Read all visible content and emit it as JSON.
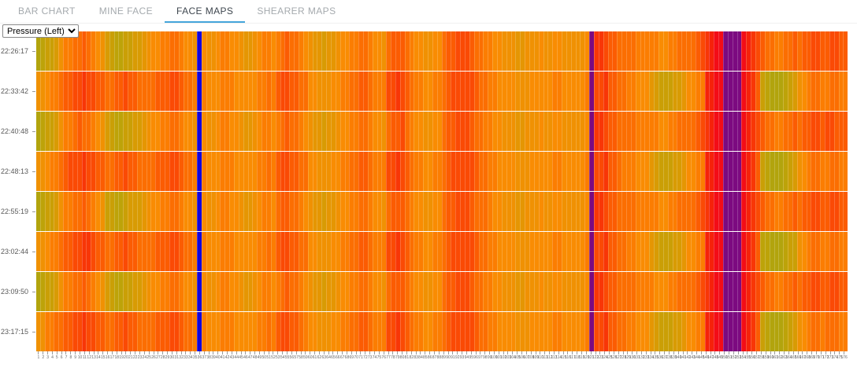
{
  "tabs": [
    {
      "label": "BAR CHART",
      "active": false
    },
    {
      "label": "MINE FACE",
      "active": false
    },
    {
      "label": "FACE MAPS",
      "active": true
    },
    {
      "label": "SHEARER MAPS",
      "active": false
    }
  ],
  "controls": {
    "metric_selected": "Pressure (Left)"
  },
  "colors": {
    "tab_active_underline": "#45a5db",
    "tab_active_text": "#3e464e",
    "tab_inactive_text": "#a5aaae",
    "axis_text": "#5a5a5a",
    "x_axis_text": "#666666",
    "tick": "#9a9a9a"
  },
  "chart_data": {
    "type": "heatmap",
    "metric": "Pressure (Left)",
    "n_cols": 176,
    "x_axis": {
      "first": 1,
      "last": 176,
      "step": 1
    },
    "grid": "faint white separators between cells",
    "legend_position": "none",
    "palette_note": "each hex digit is one support's pressure level: 0=lowest (olive/yellow-green), 5-9=orange, 10-13=red, 14=extreme (purple), 15=max (blue)",
    "palette": [
      "#b2a40d",
      "#bda309",
      "#ca9f06",
      "#d89b04",
      "#e59603",
      "#f09103",
      "#f98c03",
      "#fb7d02",
      "#fb6e02",
      "#fb5c03",
      "#fa4a05",
      "#f83607",
      "#f5220a",
      "#f30d17",
      "#7c0a80",
      "#1203dc"
    ],
    "notable_features": {
      "blue_column_support": 36,
      "purple_column_support": 121,
      "purple_band_supports": [
        150,
        153
      ],
      "red_band_supports": [
        146,
        156
      ]
    },
    "rows": [
      {
        "time": "22:26:17",
        "values": [
          "01",
          "2235",
          "778",
          "898",
          "765",
          "321122334",
          "5667",
          "7887",
          "665",
          "f",
          "6556",
          "7766",
          "5445",
          "6776",
          "7898876",
          "5443445",
          "6677887665",
          "89998",
          "7665566",
          "899aa",
          "a98877665",
          "55445556",
          "556655",
          "5556",
          "e",
          "bba9988",
          "88777",
          "77667788",
          "889a",
          "bcdd",
          "eeee",
          "dcb",
          "a",
          "98877889",
          "899aa",
          "99aa99"
        ]
      },
      {
        "time": "22:33:42",
        "values": [
          "55",
          "6778",
          "99a",
          "aba",
          "a99",
          "8899a9988",
          "8899",
          "9aa9",
          "887",
          "f",
          "7666",
          "7776",
          "6666",
          "7787",
          "9aa9988",
          "6655566",
          "7788998777",
          "aaba9",
          "8776677",
          "89aaa",
          "aa9887766",
          "66555666",
          "667766",
          "6667",
          "e",
          "aab9988",
          "77666",
          "43222334",
          "6677",
          "ccdd",
          "eeee",
          "dcb",
          "9",
          "21000123",
          "56788",
          "778877"
        ]
      },
      {
        "time": "22:40:48",
        "values": [
          "01",
          "2235",
          "778",
          "988",
          "765",
          "321122334",
          "5667",
          "7887",
          "665",
          "f",
          "6556",
          "7766",
          "5445",
          "6776",
          "7898876",
          "5443445",
          "6677887665",
          "899a8",
          "7665566",
          "899aa",
          "a98877665",
          "55445556",
          "556655",
          "5556",
          "e",
          "bba9988",
          "88777",
          "77667788",
          "889a",
          "bcdd",
          "eeee",
          "dcb",
          "a",
          "98877889",
          "899aa",
          "9aa999"
        ]
      },
      {
        "time": "22:48:13",
        "values": [
          "55",
          "6778",
          "9aa",
          "aba",
          "a99",
          "8899a9988",
          "8899",
          "9aa9",
          "887",
          "f",
          "7666",
          "7776",
          "6666",
          "7787",
          "9aa9988",
          "6655566",
          "7788998777",
          "aaba9",
          "8776677",
          "89aaa",
          "aa9887766",
          "66555666",
          "667766",
          "6667",
          "e",
          "aab9987",
          "77666",
          "43222334",
          "6677",
          "ccdd",
          "eeee",
          "dcb",
          "9",
          "21000123",
          "56788",
          "778877"
        ]
      },
      {
        "time": "22:55:19",
        "values": [
          "01",
          "2235",
          "778",
          "898",
          "765",
          "221123334",
          "5667",
          "7887",
          "665",
          "f",
          "6556",
          "7766",
          "5445",
          "6776",
          "8998876",
          "5443445",
          "6677887665",
          "89998",
          "7665566",
          "899aa",
          "a98887665",
          "55445556",
          "556655",
          "5556",
          "e",
          "bba9988",
          "88777",
          "77667788",
          "889a",
          "bcdd",
          "eeee",
          "dcb",
          "a",
          "98877889",
          "899aa",
          "99aa99"
        ]
      },
      {
        "time": "23:02:44",
        "values": [
          "55",
          "6778",
          "99a",
          "abb",
          "a99",
          "8899a9988",
          "8899",
          "9aa9",
          "887",
          "f",
          "7666",
          "7776",
          "6666",
          "7787",
          "9aa9988",
          "6655566",
          "7788998777",
          "aaba9",
          "8776677",
          "89aaa",
          "aa9887766",
          "66555666",
          "667766",
          "6667",
          "e",
          "aab9988",
          "77666",
          "43222334",
          "6677",
          "ccdd",
          "eeee",
          "dcb",
          "9",
          "11000122",
          "56788",
          "778877"
        ]
      },
      {
        "time": "23:09:50",
        "values": [
          "01",
          "2235",
          "778",
          "898",
          "765",
          "321122334",
          "5667",
          "7887",
          "665",
          "f",
          "6556",
          "7766",
          "5445",
          "6776",
          "7898876",
          "5443445",
          "6677887665",
          "89998",
          "7665566",
          "899aa",
          "a98877665",
          "55445556",
          "556655",
          "5556",
          "e",
          "bba9988",
          "88777",
          "76667788",
          "889a",
          "bcdd",
          "eeee",
          "dcb",
          "a",
          "98877889",
          "899aa",
          "99aa99"
        ]
      },
      {
        "time": "23:17:15",
        "values": [
          "55",
          "7788",
          "99a",
          "aba",
          "a99",
          "8899a9988",
          "8899",
          "9aa9",
          "887",
          "f",
          "7666",
          "7776",
          "6666",
          "7787",
          "9aa9987",
          "6655566",
          "7788998777",
          "aaba9",
          "8776677",
          "89aaa",
          "aa9887766",
          "66555666",
          "667766",
          "6667",
          "e",
          "aab9988",
          "77666",
          "43222334",
          "6677",
          "ccdd",
          "eeee",
          "dcb",
          "9",
          "21000123",
          "56788",
          "788877"
        ]
      }
    ]
  }
}
